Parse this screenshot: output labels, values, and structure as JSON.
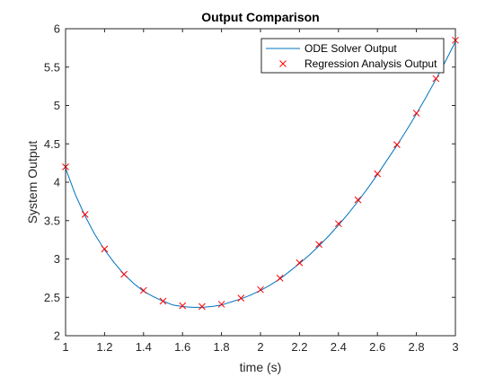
{
  "chart_data": {
    "type": "line",
    "title": "Output Comparison",
    "xlabel": "time (s)",
    "ylabel": "System Output",
    "xlim": [
      1,
      3
    ],
    "ylim": [
      2,
      6
    ],
    "xticks": [
      1,
      1.2,
      1.4,
      1.6,
      1.8,
      2,
      2.2,
      2.4,
      2.6,
      2.8,
      3
    ],
    "xtick_labels": [
      "1",
      "1.2",
      "1.4",
      "1.6",
      "1.8",
      "2",
      "2.2",
      "2.4",
      "2.6",
      "2.8",
      "3"
    ],
    "yticks": [
      2,
      2.5,
      3,
      3.5,
      4,
      4.5,
      5,
      5.5,
      6
    ],
    "ytick_labels": [
      "2",
      "2.5",
      "3",
      "3.5",
      "4",
      "4.5",
      "5",
      "5.5",
      "6"
    ],
    "grid": false,
    "legend_position": "top-right",
    "series": [
      {
        "name": "ODE Solver Output",
        "style": "line",
        "color": "#0072BD",
        "x": [
          1,
          1.05,
          1.1,
          1.15,
          1.2,
          1.25,
          1.3,
          1.35,
          1.4,
          1.45,
          1.5,
          1.55,
          1.6,
          1.65,
          1.7,
          1.75,
          1.8,
          1.85,
          1.9,
          1.95,
          2,
          2.05,
          2.1,
          2.15,
          2.2,
          2.25,
          2.3,
          2.35,
          2.4,
          2.45,
          2.5,
          2.55,
          2.6,
          2.65,
          2.7,
          2.75,
          2.8,
          2.85,
          2.9,
          2.95,
          3
        ],
        "y": [
          4.18,
          3.84,
          3.56,
          3.32,
          3.12,
          2.95,
          2.8,
          2.68,
          2.58,
          2.51,
          2.45,
          2.4,
          2.38,
          2.37,
          2.37,
          2.38,
          2.4,
          2.44,
          2.48,
          2.53,
          2.59,
          2.66,
          2.74,
          2.84,
          2.94,
          3.05,
          3.17,
          3.3,
          3.44,
          3.59,
          3.75,
          3.92,
          4.1,
          4.29,
          4.48,
          4.68,
          4.89,
          5.11,
          5.34,
          5.58,
          5.83
        ]
      },
      {
        "name": "Regression Analysis Output",
        "style": "marker-x",
        "color": "#FF0000",
        "x": [
          1,
          1.1,
          1.2,
          1.3,
          1.4,
          1.5,
          1.6,
          1.7,
          1.8,
          1.9,
          2,
          2.1,
          2.2,
          2.3,
          2.4,
          2.5,
          2.6,
          2.7,
          2.8,
          2.9,
          3
        ],
        "y": [
          4.2,
          3.58,
          3.13,
          2.8,
          2.59,
          2.45,
          2.39,
          2.38,
          2.41,
          2.49,
          2.6,
          2.75,
          2.95,
          3.19,
          3.46,
          3.77,
          4.11,
          4.49,
          4.9,
          5.35,
          5.85
        ]
      }
    ]
  }
}
